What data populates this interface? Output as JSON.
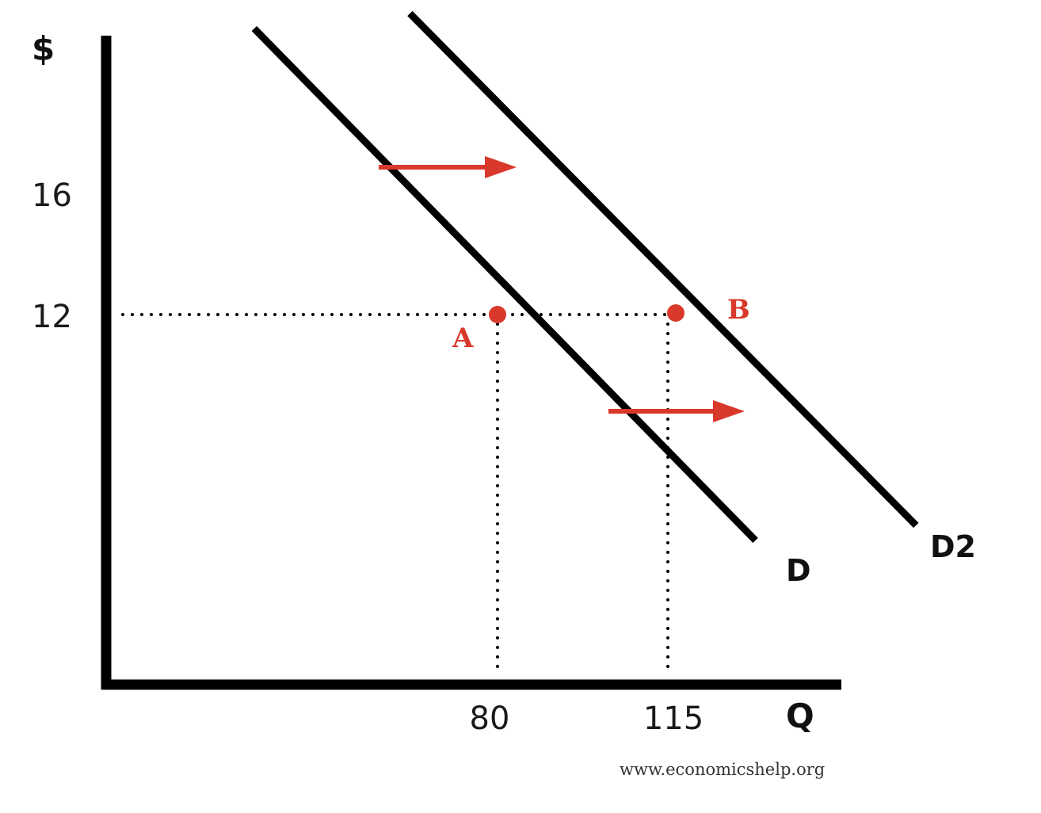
{
  "colors": {
    "axis": "#000000",
    "curve": "#000000",
    "accent": "#d9392b",
    "guide": "#000000"
  },
  "chart_data": {
    "type": "line",
    "title": "",
    "xlabel": "Q",
    "ylabel": "$",
    "xlim": [
      0,
      150
    ],
    "ylim": [
      0,
      22
    ],
    "grid": false,
    "x_ticks": [
      "80",
      "115"
    ],
    "y_ticks": [
      "16",
      "12"
    ],
    "x_tick_values": [
      80,
      115
    ],
    "y_tick_values": [
      16,
      12
    ],
    "series": [
      {
        "name": "D",
        "points": [
          [
            30,
            21.5
          ],
          [
            133,
            4.5
          ]
        ]
      },
      {
        "name": "D2",
        "points": [
          [
            62,
            22
          ],
          [
            166,
            5
          ]
        ]
      }
    ],
    "points": [
      {
        "label": "A",
        "x": 80,
        "y": 12
      },
      {
        "label": "B",
        "x": 115,
        "y": 12
      }
    ],
    "annotations": {
      "shift_arrows": "rightward",
      "source": "www.economicshelp.org"
    }
  }
}
